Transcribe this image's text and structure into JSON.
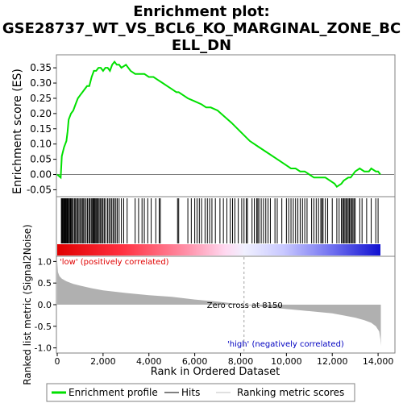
{
  "chart_data": [
    {
      "type": "line",
      "title": "Enrichment plot: GSE28737_WT_VS_BCL6_KO_MARGINAL_ZONE_BCELL_DN",
      "title_lines": [
        "Enrichment plot:",
        "GSE28737_WT_VS_BCL6_KO_MARGINAL_ZONE_BC",
        "ELL_DN"
      ],
      "ylabel": "Enrichment score (ES)",
      "xlim": [
        0,
        14700
      ],
      "ylim": [
        -0.07,
        0.39
      ],
      "yticks": [
        "-0.05",
        "0.00",
        "0.05",
        "0.10",
        "0.15",
        "0.20",
        "0.25",
        "0.30",
        "0.35"
      ],
      "ytick_values": [
        -0.05,
        0.0,
        0.05,
        0.1,
        0.15,
        0.2,
        0.25,
        0.3,
        0.35
      ],
      "series": [
        {
          "name": "Enrichment profile",
          "color": "#00e000",
          "x": [
            0,
            150,
            200,
            300,
            400,
            450,
            500,
            600,
            700,
            800,
            900,
            1000,
            1100,
            1200,
            1300,
            1400,
            1500,
            1600,
            1700,
            1800,
            1900,
            2000,
            2100,
            2200,
            2300,
            2400,
            2500,
            2600,
            2700,
            2800,
            3000,
            3200,
            3400,
            3600,
            3800,
            4000,
            4200,
            4400,
            4600,
            4800,
            5000,
            5200,
            5300,
            5500,
            5700,
            6000,
            6300,
            6500,
            6700,
            7000,
            7300,
            7600,
            8000,
            8400,
            8800,
            9200,
            9600,
            10000,
            10200,
            10400,
            10600,
            10800,
            11000,
            11200,
            11300,
            11500,
            11700,
            11900,
            12100,
            12200,
            12400,
            12500,
            12700,
            12800,
            13000,
            13200,
            13400,
            13600,
            13700,
            13900,
            14000,
            14100
          ],
          "y": [
            0.0,
            -0.01,
            0.06,
            0.09,
            0.11,
            0.14,
            0.18,
            0.2,
            0.21,
            0.23,
            0.25,
            0.26,
            0.27,
            0.28,
            0.29,
            0.29,
            0.32,
            0.34,
            0.34,
            0.35,
            0.35,
            0.34,
            0.35,
            0.35,
            0.34,
            0.36,
            0.37,
            0.36,
            0.36,
            0.35,
            0.36,
            0.34,
            0.33,
            0.33,
            0.33,
            0.32,
            0.32,
            0.31,
            0.3,
            0.29,
            0.28,
            0.27,
            0.27,
            0.26,
            0.25,
            0.24,
            0.23,
            0.22,
            0.22,
            0.21,
            0.19,
            0.17,
            0.14,
            0.11,
            0.09,
            0.07,
            0.05,
            0.03,
            0.02,
            0.02,
            0.01,
            0.01,
            0.0,
            -0.01,
            -0.01,
            -0.01,
            -0.01,
            -0.02,
            -0.03,
            -0.04,
            -0.03,
            -0.02,
            -0.01,
            -0.01,
            0.01,
            0.02,
            0.01,
            0.01,
            0.02,
            0.01,
            0.01,
            0.0
          ]
        }
      ],
      "zero_line_color": "#808080"
    },
    {
      "type": "bar",
      "series": [
        {
          "name": "Hits",
          "color": "#000000",
          "x": [
            180,
            210,
            240,
            260,
            290,
            320,
            350,
            380,
            410,
            440,
            470,
            500,
            540,
            580,
            620,
            660,
            700,
            760,
            800,
            850,
            900,
            950,
            1000,
            1060,
            1100,
            1150,
            1200,
            1260,
            1320,
            1380,
            1420,
            1480,
            1520,
            1560,
            1600,
            1640,
            1680,
            1720,
            1760,
            1800,
            1860,
            1900,
            1960,
            2000,
            2060,
            2120,
            2200,
            2260,
            2320,
            2380,
            2440,
            2500,
            2560,
            2620,
            2700,
            2800,
            2900,
            3050,
            3400,
            3550,
            3700,
            3800,
            3950,
            4100,
            4300,
            4450,
            4500,
            5250,
            5300,
            5700,
            5850,
            6000,
            6100,
            6200,
            6300,
            6450,
            6550,
            6650,
            6750,
            6900,
            7100,
            7250,
            7400,
            7550,
            7650,
            7750,
            7900,
            8050,
            8150,
            8250,
            8300,
            8500,
            8600,
            8700,
            8750,
            8800,
            8900,
            9000,
            9100,
            9200,
            9300,
            9500,
            9600,
            9800,
            10000,
            10100,
            10200,
            10300,
            10400,
            10500,
            10600,
            10700,
            10800,
            10900,
            11100,
            11200,
            11300,
            11400,
            11500,
            11550,
            11600,
            11700,
            11800,
            12000,
            12200,
            12300,
            12400,
            12450,
            12500,
            12550,
            12600,
            12650,
            12700,
            12750,
            12800,
            12850,
            12900,
            12950,
            13000,
            13200,
            13300,
            13500,
            13700,
            13900,
            14000
          ]
        }
      ]
    },
    {
      "type": "area",
      "ylabel": "Ranked list metric (Signal2Noise)",
      "xlabel": "Rank in Ordered Dataset",
      "xlim": [
        0,
        14700
      ],
      "ylim": [
        -1.1,
        1.1
      ],
      "yticks": [
        "-1.0",
        "-0.5",
        "0.0",
        "0.5",
        "1.0"
      ],
      "ytick_values": [
        -1.0,
        -0.5,
        0.0,
        0.5,
        1.0
      ],
      "xticks": [
        "0",
        "2,000",
        "4,000",
        "6,000",
        "8,000",
        "10,000",
        "12,000",
        "14,000"
      ],
      "xtick_values": [
        0,
        2000,
        4000,
        6000,
        8000,
        10000,
        12000,
        14000
      ],
      "series": [
        {
          "name": "Ranking metric scores",
          "color": "#b0b0b0",
          "x": [
            0,
            30,
            100,
            200,
            400,
            700,
            1000,
            1500,
            2000,
            3000,
            4000,
            5000,
            6000,
            7000,
            8150,
            9000,
            10000,
            11000,
            12000,
            12500,
            13000,
            13400,
            13700,
            13900,
            14050,
            14100,
            14120
          ],
          "y": [
            1.0,
            0.75,
            0.66,
            0.6,
            0.54,
            0.48,
            0.44,
            0.38,
            0.33,
            0.27,
            0.22,
            0.18,
            0.12,
            0.07,
            0.0,
            -0.05,
            -0.1,
            -0.15,
            -0.2,
            -0.25,
            -0.3,
            -0.36,
            -0.42,
            -0.5,
            -0.62,
            -0.8,
            -0.95
          ]
        }
      ],
      "zero_cross_label": "Zero cross at 8150",
      "zero_cross_x": 8150,
      "label_low": "'low' (positively correlated)",
      "label_high": "'high' (negatively correlated)",
      "label_low_color": "#e00000",
      "label_high_color": "#0000c0"
    }
  ],
  "legend": {
    "placement": "bottom",
    "items": [
      {
        "label": "Enrichment profile",
        "color": "#00e000",
        "style": "thick"
      },
      {
        "label": "Hits",
        "color": "#000000",
        "style": "thin"
      },
      {
        "label": "Ranking metric scores",
        "color": "#c0c0c0",
        "style": "thin"
      }
    ]
  },
  "colors": {
    "heat_red": "#ff0000",
    "heat_pink": "#ffb0c8",
    "heat_white": "#ffffff",
    "heat_lavender": "#b8b8ff",
    "heat_blue": "#0000e0"
  }
}
